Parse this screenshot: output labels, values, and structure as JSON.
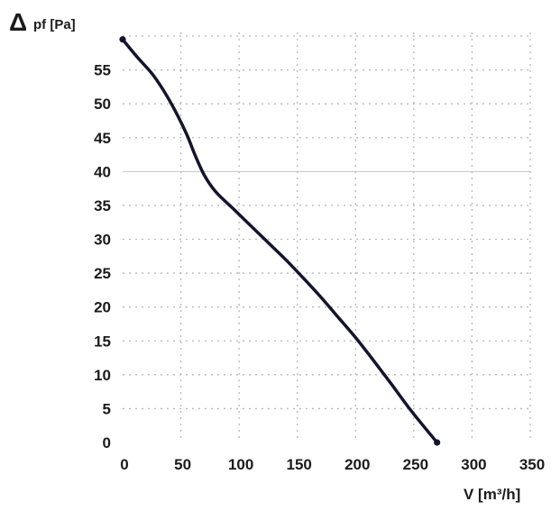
{
  "chart_data": {
    "type": "line",
    "title": "",
    "ylabel_symbol": "Δ",
    "ylabel": "pf [Pa]",
    "xlabel": "V [m³/h]",
    "xlim": [
      0,
      350
    ],
    "ylim": [
      0,
      60
    ],
    "xticks": [
      0,
      50,
      100,
      150,
      200,
      250,
      300,
      350
    ],
    "yticks": [
      0,
      5,
      10,
      15,
      20,
      25,
      30,
      35,
      40,
      45,
      50,
      55
    ],
    "x_tick_labels": [
      "0",
      "50",
      "100",
      "150",
      "200",
      "250",
      "300",
      "350"
    ],
    "y_tick_labels": [
      "0",
      "5",
      "10",
      "15",
      "20",
      "25",
      "30",
      "35",
      "40",
      "45",
      "50",
      "55"
    ],
    "grid": true,
    "legend": "none",
    "series": [
      {
        "color": "#14142e",
        "x": [
          0,
          12,
          25,
          35,
          45,
          55,
          62,
          70,
          80,
          95,
          110,
          125,
          140,
          155,
          170,
          185,
          200,
          215,
          230,
          245,
          258,
          270
        ],
        "y": [
          59.5,
          57,
          54.5,
          52,
          49,
          45.5,
          42.5,
          39.5,
          37,
          34.5,
          32,
          29.5,
          27,
          24.3,
          21.5,
          18.5,
          15.5,
          12.2,
          8.8,
          5.3,
          2.5,
          0
        ]
      }
    ]
  }
}
